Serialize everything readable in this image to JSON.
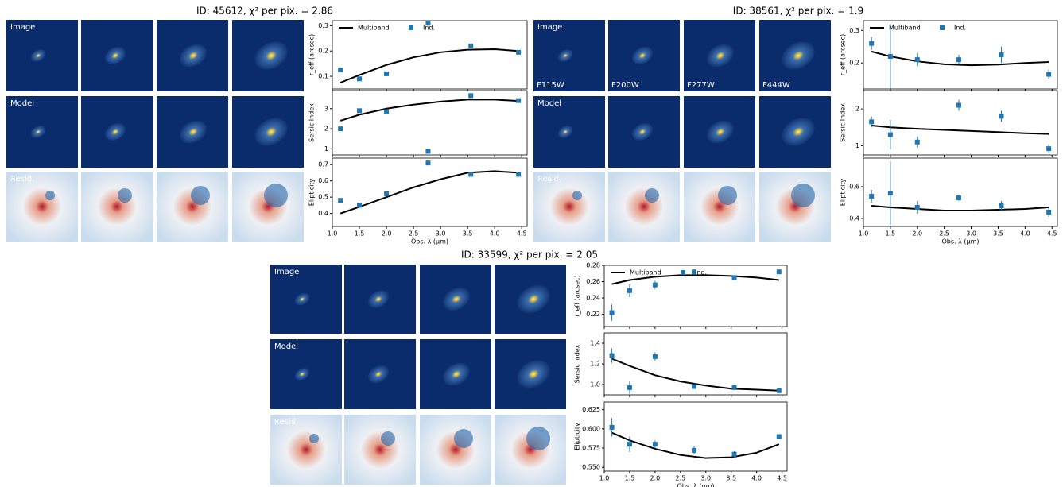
{
  "panels": [
    {
      "title": "ID: 45612, χ² per pix. = 2.86",
      "row_labels": [
        "Image",
        "Model",
        "Resid."
      ]
    },
    {
      "title": "ID: 38561, χ² per pix. = 1.9",
      "row_labels": [
        "Image",
        "Model",
        "Resid."
      ],
      "bands": [
        "F115W",
        "F200W",
        "F277W",
        "F444W"
      ]
    },
    {
      "title": "ID: 33599, χ² per pix. = 2.05",
      "row_labels": [
        "Image",
        "Model",
        "Resid."
      ]
    }
  ],
  "chart_data": [
    {
      "type": "line",
      "ylabel": "r_eff (arcsec)",
      "xlim": [
        1.0,
        4.6
      ],
      "ylim": [
        0.05,
        0.32
      ],
      "yticks": [
        0.1,
        0.2,
        0.3
      ],
      "legend": "upper left",
      "series": [
        {
          "name": "Multiband",
          "color": "#000000",
          "x": [
            1.15,
            1.5,
            2.0,
            2.5,
            3.0,
            3.5,
            4.0,
            4.44
          ],
          "values": [
            0.075,
            0.105,
            0.145,
            0.175,
            0.195,
            0.205,
            0.207,
            0.2
          ]
        },
        {
          "name": "Ind.",
          "color": "#1f77b4",
          "x": [
            1.15,
            1.5,
            2.0,
            2.77,
            3.56,
            4.44
          ],
          "values": [
            0.125,
            0.09,
            0.11,
            0.31,
            0.22,
            0.195
          ]
        }
      ]
    },
    {
      "type": "line",
      "ylabel": "Sersic Index",
      "xlim": [
        1.0,
        4.6
      ],
      "ylim": [
        0.7,
        3.9
      ],
      "yticks": [
        1,
        2,
        3
      ],
      "series": [
        {
          "color": "#000000",
          "x": [
            1.15,
            1.5,
            2.0,
            2.5,
            3.0,
            3.5,
            4.0,
            4.44
          ],
          "values": [
            2.4,
            2.7,
            3.0,
            3.2,
            3.35,
            3.45,
            3.45,
            3.38
          ]
        },
        {
          "color": "#1f77b4",
          "x": [
            1.15,
            1.5,
            2.0,
            2.77,
            3.56,
            4.44
          ],
          "values": [
            2.0,
            2.9,
            2.85,
            0.88,
            3.65,
            3.4
          ]
        }
      ]
    },
    {
      "type": "line",
      "ylabel": "Elipticity",
      "xlabel": "Obs. λ (μm)",
      "xlim": [
        1.0,
        4.6
      ],
      "ylim": [
        0.32,
        0.74
      ],
      "yticks": [
        0.4,
        0.5,
        0.6,
        0.7
      ],
      "xticks": [
        {
          "value": 1,
          "label": "1.0"
        },
        1.5,
        {
          "value": 2,
          "label": "2.0"
        },
        2.5,
        {
          "value": 3,
          "label": "3.0"
        },
        3.5,
        {
          "value": 4,
          "label": "4.0"
        },
        4.5
      ],
      "series": [
        {
          "color": "#000000",
          "x": [
            1.15,
            1.5,
            2.0,
            2.5,
            3.0,
            3.5,
            4.0,
            4.44
          ],
          "values": [
            0.4,
            0.44,
            0.5,
            0.56,
            0.61,
            0.65,
            0.66,
            0.65
          ]
        },
        {
          "color": "#1f77b4",
          "x": [
            1.15,
            1.5,
            2.0,
            2.77,
            3.56,
            4.44
          ],
          "values": [
            0.48,
            0.45,
            0.52,
            0.71,
            0.64,
            0.64
          ]
        }
      ]
    },
    {
      "type": "line",
      "ylabel": "r_eff (arcsec)",
      "xlim": [
        1.0,
        4.6
      ],
      "ylim": [
        0.12,
        0.33
      ],
      "yticks": [
        0.2,
        0.3
      ],
      "legend": "upper left",
      "series": [
        {
          "name": "Multiband",
          "color": "#000000",
          "x": [
            1.15,
            1.5,
            2.0,
            2.5,
            3.0,
            3.5,
            4.0,
            4.44
          ],
          "values": [
            0.235,
            0.22,
            0.205,
            0.196,
            0.193,
            0.195,
            0.2,
            0.203
          ]
        },
        {
          "name": "Ind.",
          "color": "#1f77b4",
          "x": [
            1.15,
            1.5,
            2.0,
            2.77,
            3.56,
            4.44
          ],
          "values": [
            0.26,
            0.22,
            0.21,
            0.21,
            0.225,
            0.165
          ],
          "errors": [
            0.02,
            0.1,
            0.02,
            0.015,
            0.025,
            0.015
          ]
        }
      ]
    },
    {
      "type": "line",
      "ylabel": "Sersic Index",
      "xlim": [
        1.0,
        4.6
      ],
      "ylim": [
        0.75,
        2.5
      ],
      "yticks": [
        1,
        2
      ],
      "series": [
        {
          "color": "#000000",
          "x": [
            1.15,
            1.5,
            2.0,
            2.5,
            3.0,
            3.5,
            4.0,
            4.44
          ],
          "values": [
            1.55,
            1.5,
            1.46,
            1.43,
            1.4,
            1.37,
            1.34,
            1.32
          ]
        },
        {
          "color": "#1f77b4",
          "x": [
            1.15,
            1.5,
            2.0,
            2.77,
            3.56,
            4.44
          ],
          "values": [
            1.65,
            1.3,
            1.1,
            2.1,
            1.8,
            0.92
          ],
          "errors": [
            0.15,
            0.4,
            0.15,
            0.15,
            0.15,
            0.12
          ]
        }
      ]
    },
    {
      "type": "line",
      "ylabel": "Elipticity",
      "xlabel": "Obs. λ (μm)",
      "xlim": [
        1.0,
        4.6
      ],
      "ylim": [
        0.35,
        0.78
      ],
      "yticks": [
        0.4,
        0.6
      ],
      "xticks": [
        {
          "value": 1,
          "label": "1.0"
        },
        1.5,
        {
          "value": 2,
          "label": "2.0"
        },
        2.5,
        {
          "value": 3,
          "label": "3.0"
        },
        3.5,
        {
          "value": 4,
          "label": "4.0"
        },
        4.5
      ],
      "series": [
        {
          "color": "#000000",
          "x": [
            1.15,
            1.5,
            2.0,
            2.5,
            3.0,
            3.5,
            4.0,
            4.44
          ],
          "values": [
            0.48,
            0.47,
            0.46,
            0.45,
            0.45,
            0.455,
            0.46,
            0.47
          ]
        },
        {
          "color": "#1f77b4",
          "x": [
            1.15,
            1.5,
            2.0,
            2.77,
            3.56,
            4.44
          ],
          "values": [
            0.54,
            0.56,
            0.47,
            0.53,
            0.48,
            0.44
          ],
          "errors": [
            0.04,
            0.2,
            0.04,
            0.02,
            0.03,
            0.03
          ]
        }
      ]
    },
    {
      "type": "line",
      "ylabel": "r_eff (arcsec)",
      "xlim": [
        1.0,
        4.6
      ],
      "ylim": [
        0.205,
        0.28
      ],
      "yticks": [
        0.22,
        0.24,
        0.26,
        0.28
      ],
      "legend": "upper left",
      "series": [
        {
          "name": "Multiband",
          "color": "#000000",
          "x": [
            1.15,
            1.5,
            2.0,
            2.5,
            3.0,
            3.5,
            4.0,
            4.44
          ],
          "values": [
            0.257,
            0.262,
            0.266,
            0.268,
            0.268,
            0.267,
            0.265,
            0.262
          ]
        },
        {
          "name": "Ind.",
          "color": "#1f77b4",
          "x": [
            1.15,
            1.5,
            2.0,
            2.77,
            3.56,
            4.44
          ],
          "values": [
            0.222,
            0.249,
            0.256,
            0.272,
            0.265,
            0.272
          ],
          "errors": [
            0.01,
            0.008,
            0.005,
            0.002,
            0.002,
            0.002
          ]
        }
      ]
    },
    {
      "type": "line",
      "ylabel": "Sersic Index",
      "xlim": [
        1.0,
        4.6
      ],
      "ylim": [
        0.9,
        1.5
      ],
      "yticks": [
        {
          "value": 1,
          "label": "1.0"
        },
        1.2,
        1.4
      ],
      "series": [
        {
          "color": "#000000",
          "x": [
            1.15,
            1.5,
            2.0,
            2.5,
            3.0,
            3.5,
            4.0,
            4.44
          ],
          "values": [
            1.25,
            1.18,
            1.09,
            1.03,
            0.99,
            0.96,
            0.95,
            0.94
          ]
        },
        {
          "color": "#1f77b4",
          "x": [
            1.15,
            1.5,
            2.0,
            2.77,
            3.56,
            4.44
          ],
          "values": [
            1.28,
            0.97,
            1.27,
            0.98,
            0.97,
            0.94
          ],
          "errors": [
            0.07,
            0.06,
            0.04,
            0.01,
            0.01,
            0.01
          ]
        }
      ]
    },
    {
      "type": "line",
      "ylabel": "Elipticity",
      "xlabel": "Obs. λ (μm)",
      "xlim": [
        1.0,
        4.6
      ],
      "ylim": [
        0.545,
        0.635
      ],
      "yticks": [
        {
          "value": 0.55,
          "label": "0.550"
        },
        0.575,
        {
          "value": 0.6,
          "label": "0.600"
        },
        0.625
      ],
      "xticks": [
        {
          "value": 1,
          "label": "1.0"
        },
        1.5,
        {
          "value": 2,
          "label": "2.0"
        },
        2.5,
        {
          "value": 3,
          "label": "3.0"
        },
        3.5,
        {
          "value": 4,
          "label": "4.0"
        },
        4.5
      ],
      "series": [
        {
          "color": "#000000",
          "x": [
            1.15,
            1.5,
            2.0,
            2.5,
            3.0,
            3.5,
            4.0,
            4.44
          ],
          "values": [
            0.595,
            0.585,
            0.574,
            0.566,
            0.562,
            0.563,
            0.569,
            0.58
          ]
        },
        {
          "color": "#1f77b4",
          "x": [
            1.15,
            1.5,
            2.0,
            2.77,
            3.56,
            4.44
          ],
          "values": [
            0.602,
            0.58,
            0.58,
            0.572,
            0.567,
            0.59
          ],
          "errors": [
            0.012,
            0.01,
            0.005,
            0.005,
            0.004,
            0.003
          ]
        }
      ]
    }
  ]
}
